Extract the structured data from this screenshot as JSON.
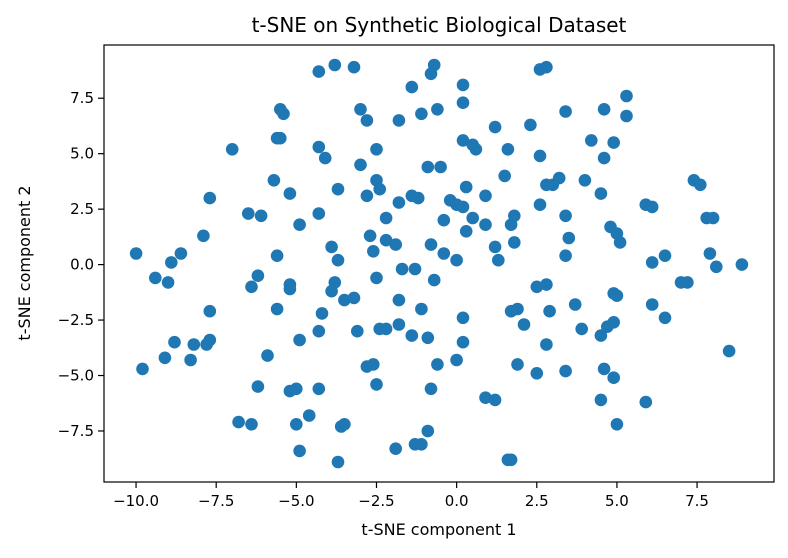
{
  "chart_data": {
    "type": "scatter",
    "title": "t-SNE on Synthetic Biological Dataset",
    "xlabel": "t-SNE component 1",
    "ylabel": "t-SNE component 2",
    "xlim": [
      -11.0,
      9.9
    ],
    "ylim": [
      -9.8,
      9.9
    ],
    "xticks": [
      -10.0,
      -7.5,
      -5.0,
      -2.5,
      0.0,
      2.5,
      5.0,
      7.5
    ],
    "xtick_labels": [
      "−10.0",
      "−7.5",
      "−5.0",
      "−2.5",
      "0.0",
      "2.5",
      "5.0",
      "7.5"
    ],
    "yticks": [
      -7.5,
      -5.0,
      -2.5,
      0.0,
      2.5,
      5.0,
      7.5
    ],
    "ytick_labels": [
      "−7.5",
      "−5.0",
      "−2.5",
      "0.0",
      "2.5",
      "5.0",
      "7.5"
    ],
    "grid": false,
    "marker_color": "#1f77b4",
    "points": [
      [
        -4.3,
        8.7
      ],
      [
        -3.8,
        9.0
      ],
      [
        -3.2,
        8.9
      ],
      [
        2.6,
        8.8
      ],
      [
        2.8,
        8.9
      ],
      [
        -0.8,
        8.6
      ],
      [
        -0.7,
        9.0
      ],
      [
        0.2,
        8.1
      ],
      [
        -1.4,
        8.0
      ],
      [
        -3.0,
        7.0
      ],
      [
        -5.5,
        7.0
      ],
      [
        -5.4,
        6.8
      ],
      [
        -2.8,
        6.5
      ],
      [
        -1.8,
        6.5
      ],
      [
        -1.1,
        6.8
      ],
      [
        -0.6,
        7.0
      ],
      [
        0.2,
        7.3
      ],
      [
        3.4,
        6.9
      ],
      [
        4.6,
        7.0
      ],
      [
        5.3,
        7.6
      ],
      [
        5.3,
        6.7
      ],
      [
        -5.6,
        5.7
      ],
      [
        -5.5,
        5.7
      ],
      [
        -4.3,
        5.3
      ],
      [
        -4.1,
        4.8
      ],
      [
        -2.5,
        5.2
      ],
      [
        -7.0,
        5.2
      ],
      [
        0.2,
        5.6
      ],
      [
        0.5,
        5.4
      ],
      [
        0.6,
        5.2
      ],
      [
        1.2,
        6.2
      ],
      [
        2.3,
        6.3
      ],
      [
        1.6,
        5.2
      ],
      [
        2.6,
        4.9
      ],
      [
        4.2,
        5.6
      ],
      [
        4.9,
        5.5
      ],
      [
        4.6,
        4.8
      ],
      [
        -3.0,
        4.5
      ],
      [
        -0.9,
        4.4
      ],
      [
        -0.5,
        4.4
      ],
      [
        1.5,
        4.0
      ],
      [
        -5.7,
        3.8
      ],
      [
        -5.2,
        3.2
      ],
      [
        -3.7,
        3.4
      ],
      [
        -2.5,
        3.8
      ],
      [
        -2.4,
        3.4
      ],
      [
        -2.8,
        3.1
      ],
      [
        -1.4,
        3.1
      ],
      [
        -1.2,
        3.0
      ],
      [
        -0.2,
        2.9
      ],
      [
        0.0,
        2.7
      ],
      [
        0.3,
        3.5
      ],
      [
        0.9,
        3.1
      ],
      [
        2.8,
        3.6
      ],
      [
        3.0,
        3.6
      ],
      [
        3.2,
        3.9
      ],
      [
        4.0,
        3.8
      ],
      [
        4.5,
        3.2
      ],
      [
        7.4,
        3.8
      ],
      [
        7.6,
        3.6
      ],
      [
        -7.7,
        3.0
      ],
      [
        -6.5,
        2.3
      ],
      [
        -6.1,
        2.2
      ],
      [
        -4.3,
        2.3
      ],
      [
        -4.9,
        1.8
      ],
      [
        -2.2,
        2.1
      ],
      [
        -1.8,
        2.8
      ],
      [
        -0.4,
        2.0
      ],
      [
        0.2,
        2.6
      ],
      [
        0.5,
        2.1
      ],
      [
        0.9,
        1.8
      ],
      [
        1.7,
        1.8
      ],
      [
        1.8,
        2.2
      ],
      [
        2.6,
        2.7
      ],
      [
        3.4,
        2.2
      ],
      [
        4.8,
        1.7
      ],
      [
        5.0,
        1.4
      ],
      [
        5.9,
        2.7
      ],
      [
        6.1,
        2.6
      ],
      [
        7.8,
        2.1
      ],
      [
        8.0,
        2.1
      ],
      [
        -7.9,
        1.3
      ],
      [
        -3.9,
        0.8
      ],
      [
        -2.7,
        1.3
      ],
      [
        -2.2,
        1.1
      ],
      [
        -1.9,
        0.9
      ],
      [
        -0.8,
        0.9
      ],
      [
        0.3,
        1.5
      ],
      [
        1.2,
        0.8
      ],
      [
        1.8,
        1.0
      ],
      [
        3.5,
        1.2
      ],
      [
        5.1,
        1.0
      ],
      [
        -10.0,
        0.5
      ],
      [
        -8.6,
        0.5
      ],
      [
        -8.9,
        0.1
      ],
      [
        -5.6,
        0.4
      ],
      [
        -3.7,
        0.2
      ],
      [
        -2.6,
        0.6
      ],
      [
        -0.4,
        0.5
      ],
      [
        0.0,
        0.2
      ],
      [
        1.3,
        0.2
      ],
      [
        3.4,
        0.4
      ],
      [
        6.1,
        0.1
      ],
      [
        6.5,
        0.4
      ],
      [
        7.9,
        0.5
      ],
      [
        8.1,
        -0.1
      ],
      [
        8.9,
        0.0
      ],
      [
        -9.4,
        -0.6
      ],
      [
        -9.0,
        -0.8
      ],
      [
        -6.2,
        -0.5
      ],
      [
        -6.4,
        -1.0
      ],
      [
        -5.2,
        -0.9
      ],
      [
        -3.8,
        -0.8
      ],
      [
        -3.9,
        -1.2
      ],
      [
        -2.5,
        -0.6
      ],
      [
        -1.7,
        -0.2
      ],
      [
        -1.3,
        -0.2
      ],
      [
        -0.7,
        -0.7
      ],
      [
        2.5,
        -1.0
      ],
      [
        2.8,
        -0.9
      ],
      [
        4.9,
        -1.3
      ],
      [
        5.0,
        -1.4
      ],
      [
        7.0,
        -0.8
      ],
      [
        7.2,
        -0.8
      ],
      [
        -7.7,
        -2.1
      ],
      [
        -5.2,
        -1.1
      ],
      [
        -5.6,
        -2.0
      ],
      [
        -4.2,
        -2.2
      ],
      [
        -3.5,
        -1.6
      ],
      [
        -3.2,
        -1.5
      ],
      [
        -1.8,
        -1.6
      ],
      [
        -1.1,
        -2.0
      ],
      [
        0.2,
        -2.4
      ],
      [
        1.9,
        -2.0
      ],
      [
        1.7,
        -2.1
      ],
      [
        2.1,
        -2.7
      ],
      [
        2.9,
        -2.1
      ],
      [
        3.7,
        -1.8
      ],
      [
        6.1,
        -1.8
      ],
      [
        6.5,
        -2.4
      ],
      [
        -8.8,
        -3.5
      ],
      [
        -8.2,
        -3.6
      ],
      [
        -7.8,
        -3.6
      ],
      [
        -7.7,
        -3.4
      ],
      [
        -4.9,
        -3.4
      ],
      [
        -4.3,
        -3.0
      ],
      [
        -3.1,
        -3.0
      ],
      [
        -2.4,
        -2.9
      ],
      [
        -2.2,
        -2.9
      ],
      [
        -1.8,
        -2.7
      ],
      [
        -1.4,
        -3.2
      ],
      [
        -0.9,
        -3.3
      ],
      [
        0.2,
        -3.5
      ],
      [
        2.8,
        -3.6
      ],
      [
        3.9,
        -2.9
      ],
      [
        4.5,
        -3.2
      ],
      [
        4.7,
        -2.8
      ],
      [
        4.9,
        -2.6
      ],
      [
        -9.1,
        -4.2
      ],
      [
        -8.3,
        -4.3
      ],
      [
        -9.8,
        -4.7
      ],
      [
        -5.9,
        -4.1
      ],
      [
        -2.8,
        -4.6
      ],
      [
        -2.6,
        -4.5
      ],
      [
        -0.6,
        -4.5
      ],
      [
        0.0,
        -4.3
      ],
      [
        1.9,
        -4.5
      ],
      [
        2.5,
        -4.9
      ],
      [
        3.4,
        -4.8
      ],
      [
        4.6,
        -4.7
      ],
      [
        4.9,
        -5.1
      ],
      [
        8.5,
        -3.9
      ],
      [
        -6.2,
        -5.5
      ],
      [
        -5.2,
        -5.7
      ],
      [
        -5.0,
        -5.6
      ],
      [
        -4.3,
        -5.6
      ],
      [
        -2.5,
        -5.4
      ],
      [
        -0.8,
        -5.6
      ],
      [
        0.9,
        -6.0
      ],
      [
        1.2,
        -6.1
      ],
      [
        4.5,
        -6.1
      ],
      [
        5.9,
        -6.2
      ],
      [
        -6.8,
        -7.1
      ],
      [
        -6.4,
        -7.2
      ],
      [
        -5.0,
        -7.2
      ],
      [
        -4.6,
        -6.8
      ],
      [
        -3.6,
        -7.3
      ],
      [
        -3.5,
        -7.2
      ],
      [
        -0.9,
        -7.5
      ],
      [
        5.0,
        -7.2
      ],
      [
        -4.9,
        -8.4
      ],
      [
        -1.9,
        -8.3
      ],
      [
        -1.3,
        -8.1
      ],
      [
        -1.1,
        -8.1
      ],
      [
        -3.7,
        -8.9
      ],
      [
        1.6,
        -8.8
      ],
      [
        1.7,
        -8.8
      ]
    ]
  }
}
